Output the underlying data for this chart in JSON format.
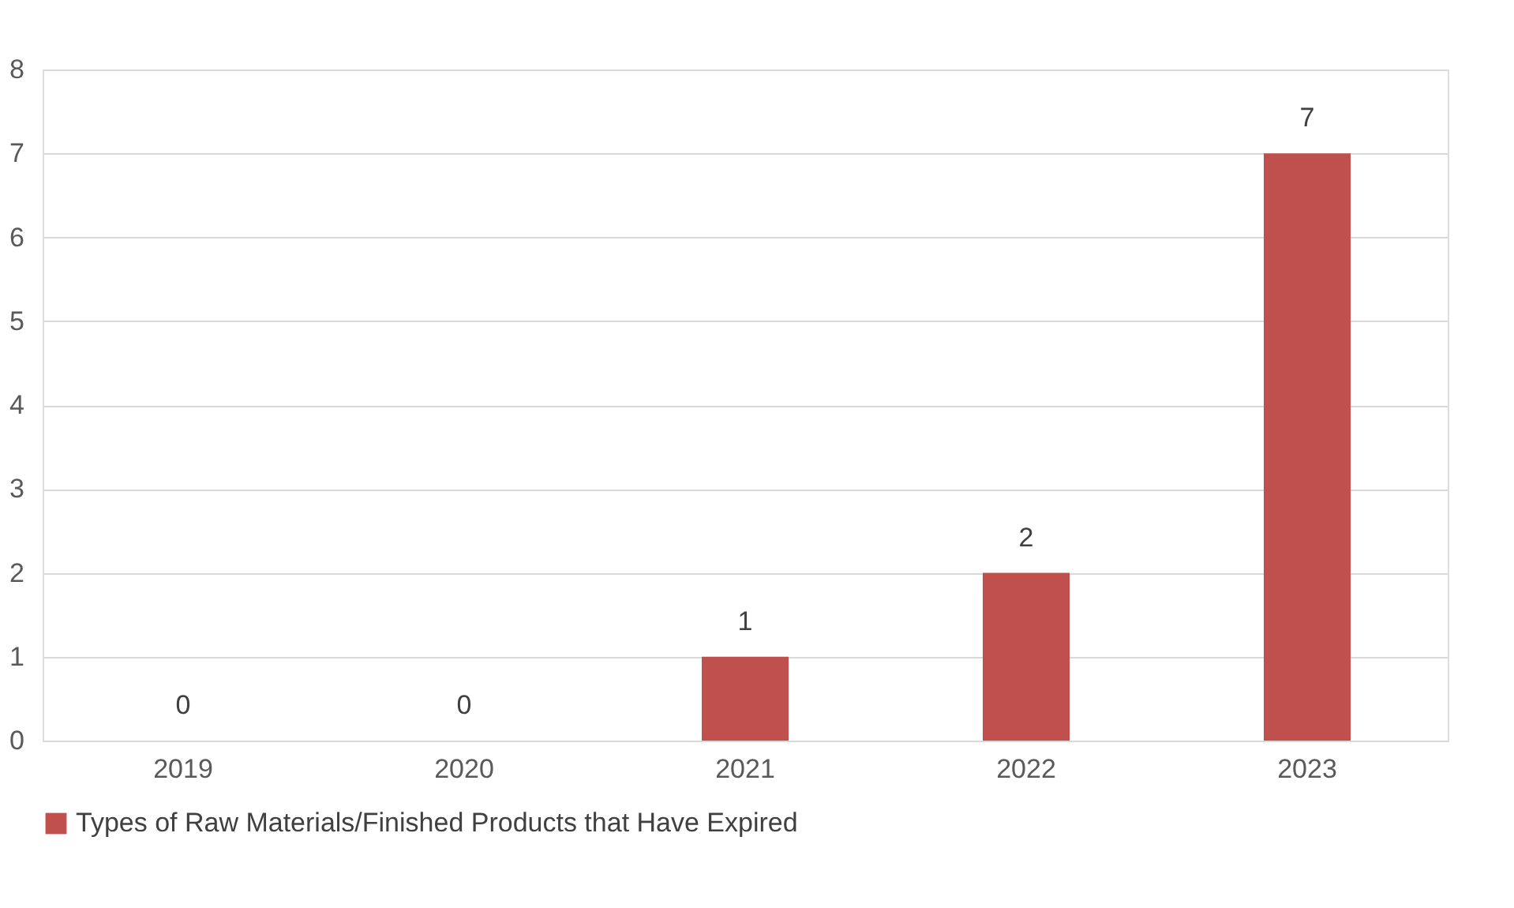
{
  "chart_data": {
    "type": "bar",
    "categories": [
      "2019",
      "2020",
      "2021",
      "2022",
      "2023"
    ],
    "series": [
      {
        "name": "Types of Raw Materials/Finished Products that Have Expired",
        "color": "#c0504d",
        "values": [
          0,
          0,
          1,
          2,
          7
        ]
      }
    ],
    "ylim": [
      0,
      8
    ],
    "yticks": [
      0,
      1,
      2,
      3,
      4,
      5,
      6,
      7,
      8
    ],
    "grid": "y",
    "legend": "bottom",
    "data_labels": true
  }
}
